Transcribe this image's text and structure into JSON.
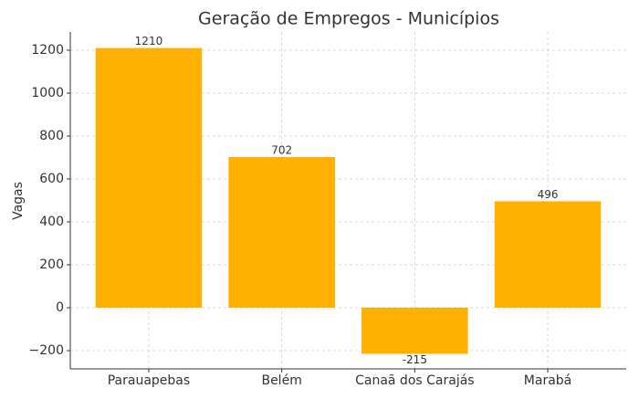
{
  "chart_data": {
    "type": "bar",
    "title": "Geração de Empregos - Municípios",
    "y_label": "Vagas",
    "categories": [
      "Parauapebas",
      "Belém",
      "Canaã dos Carajás",
      "Marabá"
    ],
    "values": [
      1210,
      702,
      -215,
      496
    ],
    "color": "#ffb000",
    "ylim": [
      -285,
      1285
    ],
    "yticks": [
      {
        "value": -200,
        "label": "−200"
      },
      0,
      200,
      400,
      600,
      800,
      1000,
      1200
    ],
    "grid": true
  }
}
